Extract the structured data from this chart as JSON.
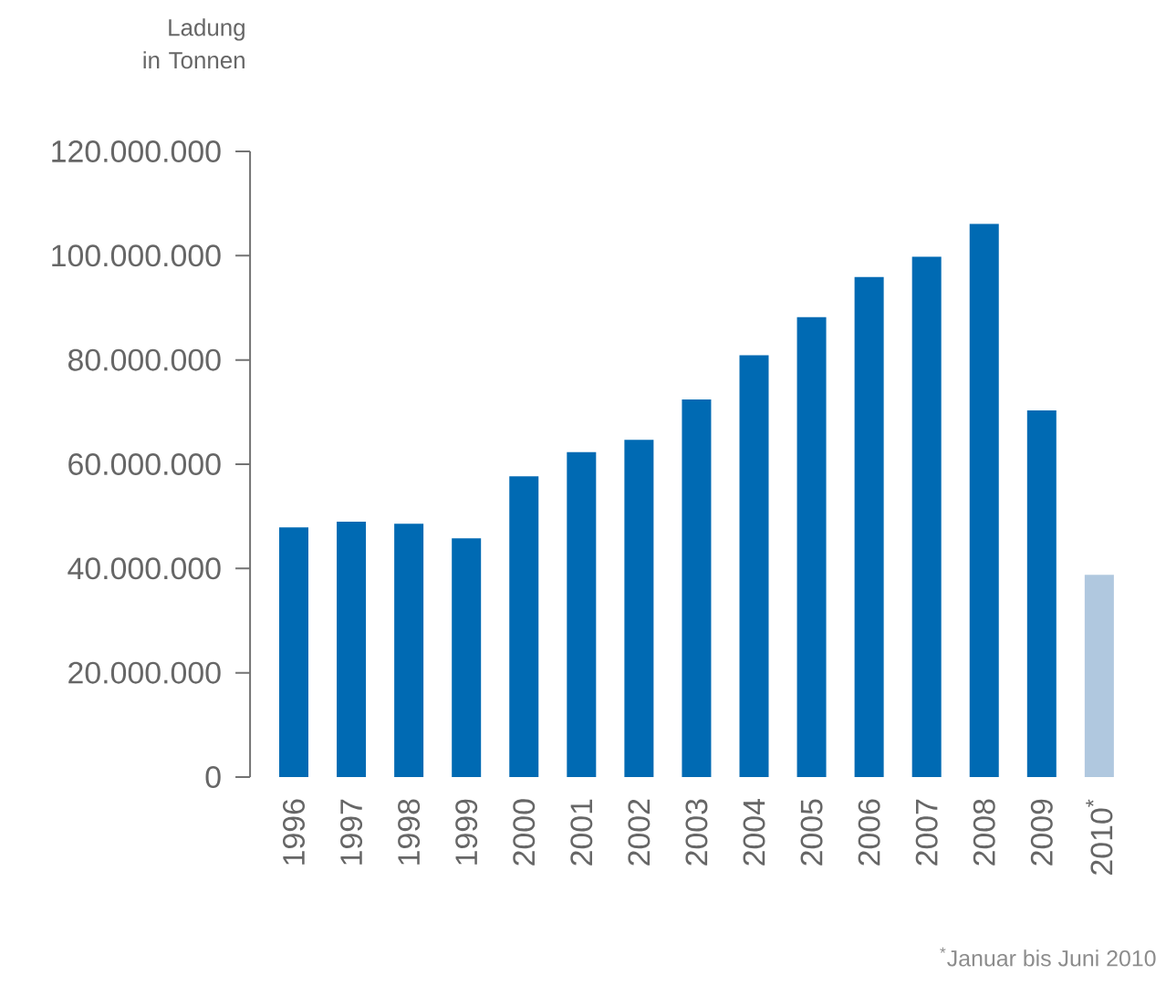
{
  "chart_data": {
    "type": "bar",
    "ylabel": "Ladung in Tonnen",
    "categories": [
      "1996",
      "1997",
      "1998",
      "1999",
      "2000",
      "2001",
      "2002",
      "2003",
      "2004",
      "2005",
      "2006",
      "2007",
      "2008",
      "2009",
      "2010$^{*}$"
    ],
    "values": [
      47900000,
      49000000,
      48600000,
      45800000,
      57700000,
      62300000,
      64700000,
      72400000,
      80900000,
      88200000,
      95900000,
      99800000,
      106100000,
      70300000,
      38800000
    ],
    "colors": [
      "#006ab3",
      "#006ab3",
      "#006ab3",
      "#006ab3",
      "#006ab3",
      "#006ab3",
      "#006ab3",
      "#006ab3",
      "#006ab3",
      "#006ab3",
      "#006ab3",
      "#006ab3",
      "#006ab3",
      "#006ab3",
      "#b0c8df"
    ],
    "ylim": [
      0,
      120000000
    ],
    "yticks": [
      {
        "value": 0,
        "label": "0"
      },
      {
        "value": 20000000,
        "label": "20.000.000"
      },
      {
        "value": 40000000,
        "label": "40.000.000"
      },
      {
        "value": 60000000,
        "label": "60.000.000"
      },
      {
        "value": 80000000,
        "label": "80.000.000"
      },
      {
        "value": 100000000,
        "label": "100.000.000"
      },
      {
        "value": 120000000,
        "label": "120.000.000"
      }
    ],
    "annotations": [
      "$^{*}$Januar bis Juni 2010"
    ]
  }
}
